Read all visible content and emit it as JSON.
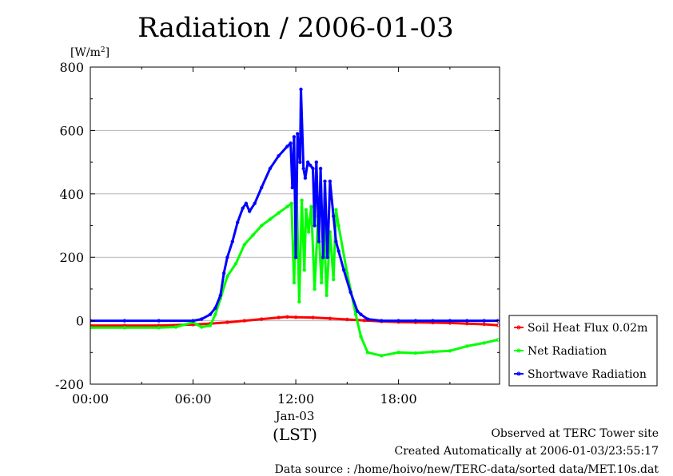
{
  "chart_data": {
    "type": "line",
    "title": "Radiation / 2006-01-03",
    "ylabel": "[W/m",
    "ylabel_sup": "2",
    "ylabel_close": "]",
    "xlabel": "(LST)",
    "date_label": "Jan-03",
    "ylim": [
      -200,
      800
    ],
    "xlim": [
      0,
      23.9
    ],
    "y_ticks": [
      -200,
      0,
      200,
      400,
      600,
      800
    ],
    "y_tick_labels": [
      "-200",
      "0",
      "200",
      "400",
      "600",
      "800"
    ],
    "x_ticks": [
      0,
      6,
      12,
      18
    ],
    "x_tick_labels": [
      "00:00",
      "06:00",
      "12:00",
      "18:00"
    ],
    "grid": true,
    "legend_position": "right",
    "series": [
      {
        "name": "Soil Heat Flux 0.02m",
        "color": "#ff0000",
        "x": [
          0,
          2,
          4,
          6,
          7,
          8,
          9,
          10,
          11,
          11.5,
          12,
          13,
          14,
          15,
          16,
          17,
          18,
          19,
          20,
          21,
          22,
          23,
          23.8
        ],
        "values": [
          -15,
          -15,
          -15,
          -12,
          -9,
          -5,
          0,
          5,
          10,
          12,
          11,
          10,
          7,
          4,
          1,
          -2,
          -4,
          -5,
          -6,
          -7,
          -9,
          -11,
          -14
        ]
      },
      {
        "name": "Net Radiation",
        "color": "#00ff00",
        "x": [
          0,
          2,
          4,
          5,
          6,
          6.5,
          7,
          7.3,
          7.6,
          8,
          8.5,
          9,
          9.5,
          10,
          10.5,
          11,
          11.5,
          11.75,
          11.9,
          12.05,
          12.2,
          12.35,
          12.5,
          12.6,
          12.75,
          12.9,
          13.1,
          13.3,
          13.5,
          13.65,
          13.8,
          14,
          14.2,
          14.35,
          14.5,
          15,
          15.5,
          15.8,
          16.2,
          17,
          18,
          19,
          20,
          21,
          22,
          23,
          23.8
        ],
        "values": [
          -22,
          -22,
          -22,
          -20,
          -5,
          -20,
          -15,
          20,
          70,
          140,
          180,
          240,
          270,
          300,
          320,
          340,
          360,
          370,
          120,
          400,
          60,
          380,
          160,
          350,
          280,
          360,
          100,
          330,
          120,
          300,
          80,
          280,
          130,
          350,
          300,
          150,
          20,
          -50,
          -100,
          -110,
          -100,
          -102,
          -98,
          -95,
          -80,
          -70,
          -60
        ]
      },
      {
        "name": "Shortwave Radiation",
        "color": "#0000ff",
        "x": [
          0,
          2,
          4,
          6,
          6.5,
          7,
          7.3,
          7.6,
          7.8,
          8,
          8.3,
          8.6,
          8.9,
          9.1,
          9.3,
          9.6,
          10,
          10.5,
          11,
          11.5,
          11.7,
          11.8,
          11.9,
          12.0,
          12.1,
          12.25,
          12.3,
          12.45,
          12.55,
          12.7,
          12.85,
          13.0,
          13.1,
          13.2,
          13.35,
          13.45,
          13.6,
          13.7,
          13.85,
          14.0,
          14.2,
          14.35,
          14.5,
          14.8,
          15.2,
          15.6,
          15.8,
          16.2,
          17,
          18,
          19,
          20,
          21,
          22,
          23,
          23.8
        ],
        "values": [
          0,
          0,
          0,
          0,
          5,
          20,
          40,
          80,
          150,
          200,
          250,
          310,
          355,
          370,
          345,
          370,
          420,
          480,
          520,
          550,
          560,
          420,
          580,
          200,
          590,
          500,
          730,
          480,
          450,
          500,
          490,
          480,
          300,
          500,
          250,
          480,
          200,
          440,
          200,
          440,
          330,
          250,
          220,
          160,
          90,
          30,
          20,
          5,
          0,
          0,
          0,
          0,
          0,
          0,
          0,
          0
        ]
      }
    ]
  },
  "footer": {
    "line1": "Observed at TERC Tower site",
    "line2": "Created Automatically at 2006-01-03/23:55:17",
    "line3": "Data source : /home/hoivo/new/TERC-data/sorted  data/MET.10s.dat"
  }
}
